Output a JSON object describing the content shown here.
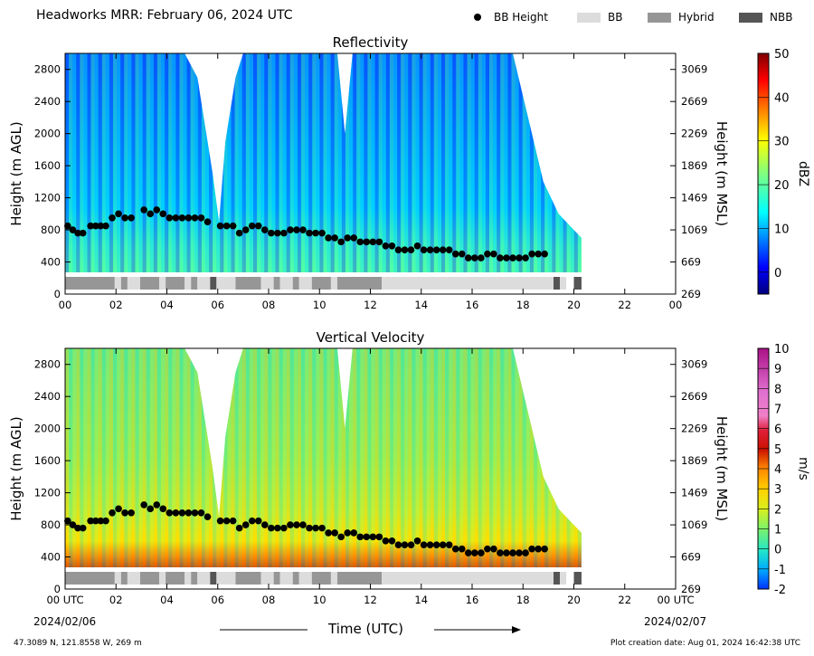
{
  "header": {
    "title": "Headworks MRR:  February 06, 2024 UTC",
    "legend": [
      {
        "label": "BB Height",
        "kind": "dot",
        "color": "#000000"
      },
      {
        "label": "BB",
        "kind": "box",
        "color": "#dcdcdc"
      },
      {
        "label": "Hybrid",
        "kind": "box",
        "color": "#969696"
      },
      {
        "label": "NBB",
        "kind": "box",
        "color": "#555555"
      }
    ]
  },
  "footer": {
    "location": "47.3089 N, 121.8558 W, 269 m",
    "created": "Plot creation date: Aug 01, 2024 16:42:38 UTC"
  },
  "x_axis": {
    "label": "Time (UTC)",
    "start_date": "2024/02/06",
    "end_date": "2024/02/07"
  },
  "chart_data": [
    {
      "type": "heatmap",
      "title": "Reflectivity",
      "ylabel": "Height (m AGL)",
      "y2label": "Height (m MSL)",
      "xticks": [
        "00",
        "02",
        "04",
        "06",
        "08",
        "10",
        "12",
        "14",
        "16",
        "18",
        "20",
        "22",
        "00"
      ],
      "yticks": [
        0,
        400,
        800,
        1200,
        1600,
        2000,
        2400,
        2800
      ],
      "y2ticks": [
        269,
        669,
        1069,
        1469,
        1869,
        2269,
        2669,
        3069
      ],
      "xlim": [
        0,
        24
      ],
      "ylim": [
        0,
        3000
      ],
      "colorbar": {
        "label": "dBZ",
        "range": [
          -5,
          50
        ],
        "ticks": [
          0,
          10,
          20,
          30,
          40,
          50
        ],
        "colormap": "jet"
      }
    },
    {
      "type": "heatmap",
      "title": "Vertical Velocity",
      "ylabel": "Height (m AGL)",
      "y2label": "Height (m MSL)",
      "xticks": [
        "00 UTC",
        "02",
        "04",
        "06",
        "08",
        "10",
        "12",
        "14",
        "16",
        "18",
        "20",
        "22",
        "00 UTC"
      ],
      "yticks": [
        0,
        400,
        800,
        1200,
        1600,
        2000,
        2400,
        2800
      ],
      "y2ticks": [
        269,
        669,
        1069,
        1469,
        1869,
        2269,
        2669,
        3069
      ],
      "xlim": [
        0,
        24
      ],
      "ylim": [
        0,
        3000
      ],
      "colorbar": {
        "label": "m/s",
        "range": [
          -2,
          10
        ],
        "ticks": [
          -2,
          -1,
          0,
          1,
          2,
          3,
          4,
          5,
          6,
          7,
          8,
          9,
          10
        ]
      }
    }
  ],
  "bb_height": {
    "times": [
      0.1,
      0.3,
      0.5,
      0.7,
      1.0,
      1.2,
      1.4,
      1.6,
      1.85,
      2.1,
      2.35,
      2.6,
      3.1,
      3.35,
      3.6,
      3.85,
      4.1,
      4.35,
      4.6,
      4.85,
      5.1,
      5.35,
      5.6,
      6.1,
      6.35,
      6.6,
      6.85,
      7.1,
      7.35,
      7.6,
      7.85,
      8.1,
      8.35,
      8.6,
      8.85,
      9.1,
      9.35,
      9.6,
      9.85,
      10.1,
      10.35,
      10.6,
      10.85,
      11.1,
      11.35,
      11.6,
      11.85,
      12.1,
      12.35,
      12.6,
      12.85,
      13.1,
      13.35,
      13.6,
      13.85,
      14.1,
      14.35,
      14.6,
      14.85,
      15.1,
      15.35,
      15.6,
      15.85,
      16.1,
      16.35,
      16.6,
      16.85,
      17.1,
      17.35,
      17.6,
      17.85,
      18.1,
      18.35,
      18.6,
      18.85
    ],
    "heights": [
      850,
      800,
      760,
      760,
      850,
      850,
      850,
      850,
      950,
      1000,
      950,
      950,
      1050,
      1000,
      1050,
      1000,
      950,
      950,
      950,
      950,
      950,
      950,
      900,
      850,
      850,
      850,
      760,
      800,
      850,
      850,
      800,
      760,
      760,
      760,
      800,
      800,
      800,
      760,
      760,
      760,
      700,
      700,
      650,
      700,
      700,
      650,
      650,
      650,
      650,
      600,
      600,
      550,
      550,
      550,
      600,
      550,
      550,
      550,
      550,
      550,
      500,
      500,
      450,
      450,
      450,
      500,
      500,
      450,
      450,
      450,
      450,
      450,
      500,
      500,
      500
    ]
  },
  "bb_type_bar": [
    {
      "t0": 0.0,
      "t1": 1.95,
      "type": "Hybrid"
    },
    {
      "t0": 1.95,
      "t1": 2.2,
      "type": "BB"
    },
    {
      "t0": 2.2,
      "t1": 2.45,
      "type": "Hybrid"
    },
    {
      "t0": 2.45,
      "t1": 2.95,
      "type": "BB"
    },
    {
      "t0": 2.95,
      "t1": 3.7,
      "type": "Hybrid"
    },
    {
      "t0": 3.7,
      "t1": 3.95,
      "type": "BB"
    },
    {
      "t0": 3.95,
      "t1": 4.7,
      "type": "Hybrid"
    },
    {
      "t0": 4.7,
      "t1": 4.95,
      "type": "BB"
    },
    {
      "t0": 4.95,
      "t1": 5.2,
      "type": "Hybrid"
    },
    {
      "t0": 5.2,
      "t1": 5.7,
      "type": "BB"
    },
    {
      "t0": 5.7,
      "t1": 5.95,
      "type": "NBB"
    },
    {
      "t0": 5.95,
      "t1": 6.7,
      "type": "BB"
    },
    {
      "t0": 6.7,
      "t1": 7.7,
      "type": "Hybrid"
    },
    {
      "t0": 7.7,
      "t1": 8.2,
      "type": "BB"
    },
    {
      "t0": 8.2,
      "t1": 8.45,
      "type": "Hybrid"
    },
    {
      "t0": 8.45,
      "t1": 8.95,
      "type": "BB"
    },
    {
      "t0": 8.95,
      "t1": 9.2,
      "type": "Hybrid"
    },
    {
      "t0": 9.2,
      "t1": 9.7,
      "type": "BB"
    },
    {
      "t0": 9.7,
      "t1": 10.45,
      "type": "Hybrid"
    },
    {
      "t0": 10.45,
      "t1": 10.7,
      "type": "BB"
    },
    {
      "t0": 10.7,
      "t1": 12.45,
      "type": "Hybrid"
    },
    {
      "t0": 12.45,
      "t1": 19.2,
      "type": "BB"
    },
    {
      "t0": 19.2,
      "t1": 19.45,
      "type": "NBB"
    },
    {
      "t0": 19.45,
      "t1": 19.7,
      "type": "BB"
    },
    {
      "t0": 20.0,
      "t1": 20.3,
      "type": "NBB"
    }
  ]
}
